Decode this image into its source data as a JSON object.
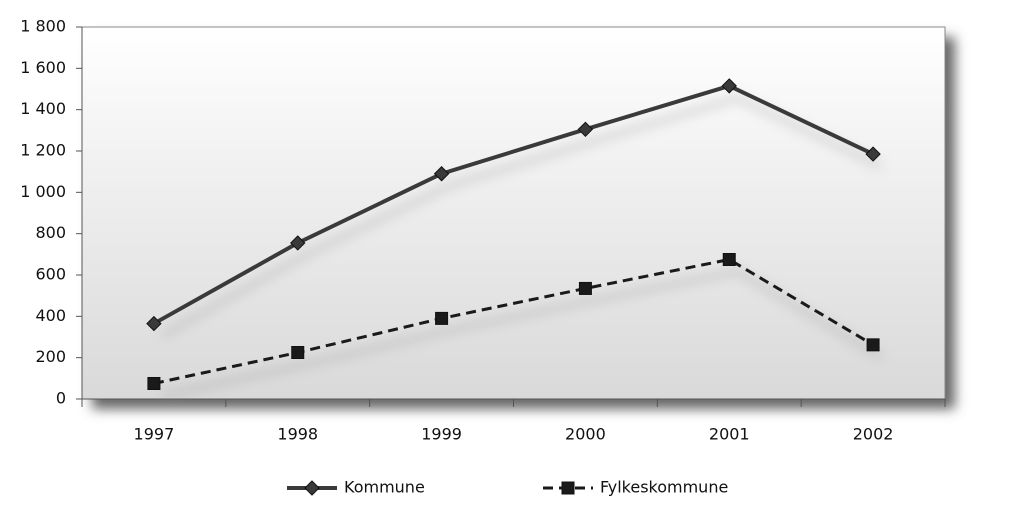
{
  "chart_data": {
    "type": "line",
    "categories": [
      "1997",
      "1998",
      "1999",
      "2000",
      "2001",
      "2002"
    ],
    "series": [
      {
        "name": "Kommune",
        "color": "#3a3a3a",
        "marker": "diamond",
        "dashed": false,
        "values": [
          365,
          755,
          1090,
          1305,
          1515,
          1185
        ]
      },
      {
        "name": "Fylkeskommune",
        "color": "#1a1a1a",
        "marker": "square",
        "dashed": true,
        "values": [
          75,
          225,
          390,
          535,
          675,
          262
        ]
      }
    ],
    "ylim": [
      0,
      1800
    ],
    "yticks": [
      0,
      200,
      400,
      600,
      800,
      {
        "value": 1000,
        "label": "1 000"
      },
      {
        "value": 1200,
        "label": "1 200"
      },
      {
        "value": 1400,
        "label": "1 400"
      },
      {
        "value": 1600,
        "label": "1 600"
      },
      {
        "value": 1800,
        "label": "1 800"
      }
    ],
    "legend": "bottom"
  }
}
